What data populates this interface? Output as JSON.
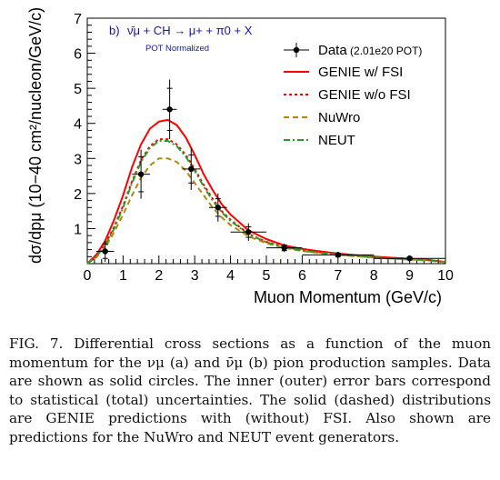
{
  "chart_data": {
    "type": "line",
    "panel_label": "b)",
    "title": "ν̄μ + CH → μ+ + π0 + X",
    "subtitle": "POT Normalized",
    "xlabel": "Muon Momentum (GeV/c)",
    "ylabel": "dσ/dpμ (10−40 cm²/nucleon/GeV/c)",
    "xlim": [
      0,
      10
    ],
    "ylim": [
      0,
      7
    ],
    "xticks": [
      "0",
      "1",
      "2",
      "3",
      "4",
      "5",
      "6",
      "7",
      "8",
      "9",
      "10"
    ],
    "yticks": [
      "1",
      "2",
      "3",
      "4",
      "5",
      "6",
      "7"
    ],
    "legend_position": "top-right",
    "data": {
      "name": "Data (2.01e20 POT)",
      "color": "#000000",
      "points": [
        {
          "x": 0.5,
          "y": 0.35,
          "xerr": 0.25,
          "stat": 0.2,
          "tot": 0.3
        },
        {
          "x": 1.5,
          "y": 2.55,
          "xerr": 0.25,
          "stat": 0.5,
          "tot": 0.7
        },
        {
          "x": 2.3,
          "y": 4.4,
          "xerr": 0.2,
          "stat": 0.6,
          "tot": 0.85
        },
        {
          "x": 2.9,
          "y": 2.7,
          "xerr": 0.25,
          "stat": 0.4,
          "tot": 0.6
        },
        {
          "x": 3.65,
          "y": 1.6,
          "xerr": 0.25,
          "stat": 0.25,
          "tot": 0.4
        },
        {
          "x": 4.5,
          "y": 0.9,
          "xerr": 0.5,
          "stat": 0.15,
          "tot": 0.25
        },
        {
          "x": 5.5,
          "y": 0.45,
          "xerr": 0.5,
          "stat": 0.08,
          "tot": 0.12
        },
        {
          "x": 7.0,
          "y": 0.25,
          "xerr": 1.0,
          "stat": 0.05,
          "tot": 0.08
        },
        {
          "x": 9.0,
          "y": 0.15,
          "xerr": 1.0,
          "stat": 0.04,
          "tot": 0.06
        }
      ]
    },
    "x": [
      0,
      0.25,
      0.5,
      0.75,
      1.0,
      1.25,
      1.5,
      1.75,
      2.0,
      2.25,
      2.5,
      2.75,
      3.0,
      3.25,
      3.5,
      3.75,
      4.0,
      4.5,
      5.0,
      5.5,
      6.0,
      6.5,
      7.0,
      7.5,
      8.0,
      8.5,
      9.0,
      9.5,
      10.0
    ],
    "series": [
      {
        "name": "GENIE w/ FSI",
        "color": "#ff0000",
        "dash": "",
        "values": [
          0.0,
          0.25,
          0.65,
          1.25,
          1.95,
          2.75,
          3.4,
          3.85,
          4.05,
          4.1,
          3.95,
          3.6,
          3.1,
          2.55,
          2.1,
          1.7,
          1.4,
          0.95,
          0.7,
          0.52,
          0.42,
          0.35,
          0.29,
          0.24,
          0.2,
          0.17,
          0.14,
          0.11,
          0.05
        ]
      },
      {
        "name": "GENIE w/o FSI",
        "color": "#ff0000",
        "dash": "3,3",
        "values": [
          0.0,
          0.2,
          0.55,
          1.05,
          1.65,
          2.35,
          2.95,
          3.35,
          3.55,
          3.55,
          3.4,
          3.1,
          2.7,
          2.25,
          1.85,
          1.5,
          1.25,
          0.85,
          0.62,
          0.48,
          0.38,
          0.32,
          0.26,
          0.22,
          0.18,
          0.15,
          0.12,
          0.1,
          0.04
        ]
      },
      {
        "name": "NuWro",
        "color": "#b8860b",
        "dash": "6,4",
        "values": [
          0.0,
          0.18,
          0.45,
          0.9,
          1.4,
          1.95,
          2.45,
          2.8,
          3.0,
          3.0,
          2.9,
          2.65,
          2.3,
          1.95,
          1.6,
          1.32,
          1.1,
          0.78,
          0.58,
          0.45,
          0.36,
          0.3,
          0.25,
          0.21,
          0.17,
          0.14,
          0.12,
          0.09,
          0.04
        ]
      },
      {
        "name": "NEUT",
        "color": "#22a022",
        "dash": "7,3,2,3",
        "values": [
          0.0,
          0.2,
          0.52,
          1.0,
          1.6,
          2.3,
          2.9,
          3.3,
          3.5,
          3.5,
          3.35,
          3.05,
          2.65,
          2.2,
          1.8,
          1.47,
          1.22,
          0.84,
          0.61,
          0.47,
          0.37,
          0.31,
          0.26,
          0.22,
          0.18,
          0.15,
          0.12,
          0.1,
          0.04
        ]
      }
    ]
  },
  "caption": "FIG. 7. Differential cross sections as a function of the muon momentum for the νμ (a) and ν̄μ (b) pion production samples. Data are shown as solid circles. The inner (outer) error bars correspond to statistical (total) uncertainties. The solid (dashed) distributions are GENIE predictions with (without) FSI. Also shown are predictions for the NuWro and NEUT event generators."
}
